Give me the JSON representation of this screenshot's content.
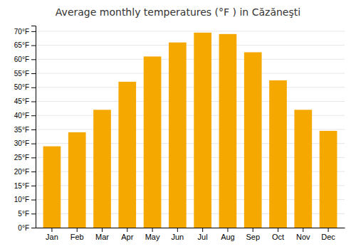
{
  "chart_data": {
    "type": "bar",
    "title": "Average monthly temperatures (°F ) in Căzăneşti",
    "categories": [
      "Jan",
      "Feb",
      "Mar",
      "Apr",
      "May",
      "Jun",
      "Jul",
      "Aug",
      "Sep",
      "Oct",
      "Nov",
      "Dec"
    ],
    "values": [
      29,
      34,
      42,
      52,
      61,
      66,
      69.5,
      69,
      62.5,
      52.5,
      42,
      34.5
    ],
    "color": "#F5A800",
    "ylim": [
      0,
      72
    ],
    "yticks": [
      {
        "value": 0,
        "label": "0°F"
      },
      {
        "value": 5,
        "label": "5°F"
      },
      {
        "value": 10,
        "label": "10°F"
      },
      {
        "value": 15,
        "label": "15°F"
      },
      {
        "value": 20,
        "label": "20°F"
      },
      {
        "value": 25,
        "label": "25°F"
      },
      {
        "value": 30,
        "label": "30°F"
      },
      {
        "value": 35,
        "label": "35°F"
      },
      {
        "value": 40,
        "label": "40°F"
      },
      {
        "value": 45,
        "label": "45°F"
      },
      {
        "value": 50,
        "label": "50°F"
      },
      {
        "value": 55,
        "label": "55°F"
      },
      {
        "value": 60,
        "label": "60°F"
      },
      {
        "value": 65,
        "label": "65°F"
      },
      {
        "value": 70,
        "label": "70°F"
      }
    ],
    "grid": true
  }
}
